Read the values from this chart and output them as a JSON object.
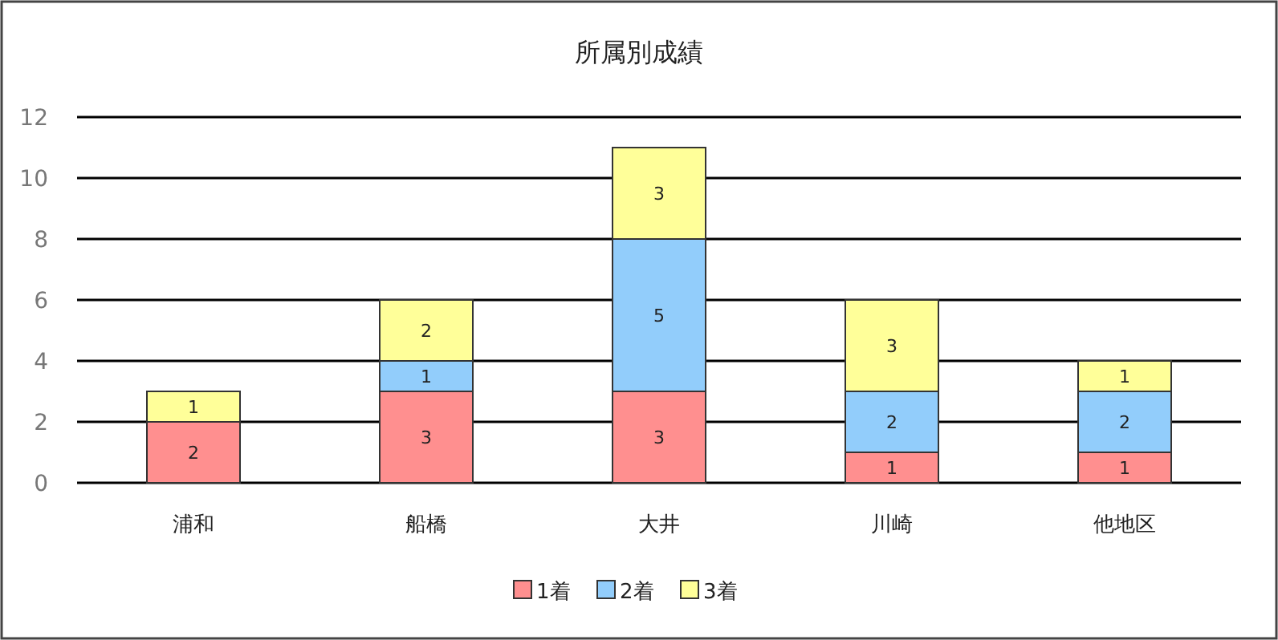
{
  "chart_data": {
    "type": "bar",
    "title": "所属別成績",
    "stacked": true,
    "data_labels": true,
    "grid": "y",
    "legend": "bottom",
    "categories": [
      "浦和",
      "船橋",
      "大井",
      "川崎",
      "他地区"
    ],
    "series": [
      {
        "name": "1着",
        "color": "#ff8f8f",
        "values": [
          2,
          3,
          3,
          1,
          1
        ]
      },
      {
        "name": "2着",
        "color": "#92cdfb",
        "values": [
          null,
          1,
          5,
          2,
          2
        ]
      },
      {
        "name": "3着",
        "color": "#ffff99",
        "values": [
          1,
          2,
          3,
          3,
          1
        ]
      }
    ],
    "ylim": [
      0,
      12
    ],
    "yticks": [
      0,
      2,
      4,
      6,
      8,
      10,
      12
    ]
  }
}
